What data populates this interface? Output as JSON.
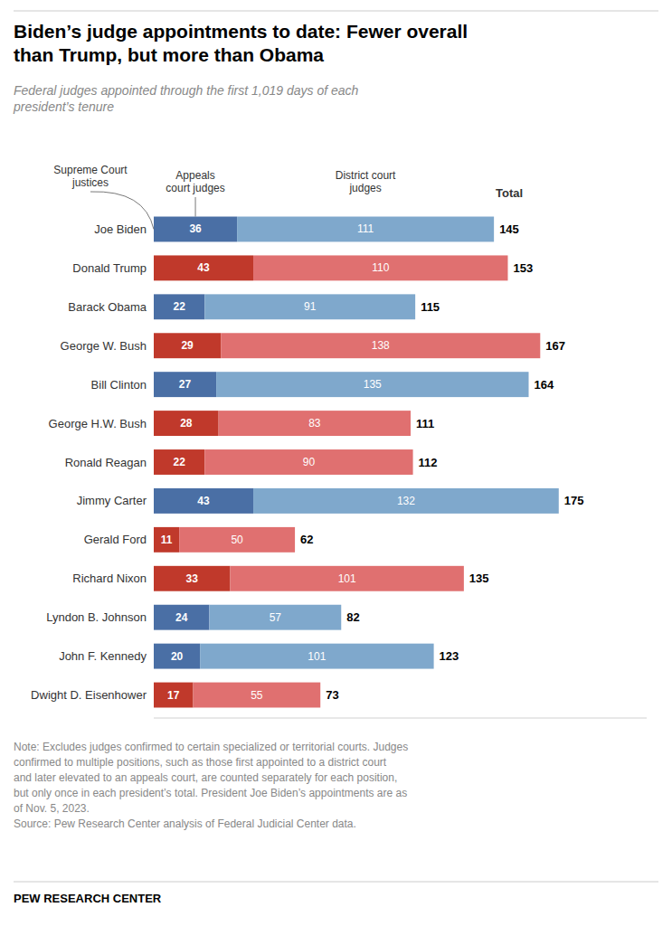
{
  "chart_data": {
    "type": "bar",
    "orientation": "horizontal",
    "stacked": true,
    "data_labels": true,
    "grid": false,
    "tick_labels": "y",
    "title": "Biden’s judge appointments to date: Fewer overall\nthan Trump, but more than Obama",
    "subtitle": "Federal judges appointed through the first 1,019 days of each\npresident’s tenure",
    "categories": [
      "Joe Biden",
      "Donald Trump",
      "Barack Obama",
      "George W. Bush",
      "Bill Clinton",
      "George H.W. Bush",
      "Ronald Reagan",
      "Jimmy Carter",
      "Gerald Ford",
      "Richard Nixon",
      "Lyndon B. Johnson",
      "John F. Kennedy",
      "Dwight D. Eisenhower"
    ],
    "series": [
      {
        "name": "Appeals\ncourt judges",
        "values": [
          36,
          43,
          22,
          29,
          27,
          28,
          22,
          43,
          11,
          33,
          24,
          20,
          17
        ],
        "colors": [
          "#4a6fa5",
          "#c0392b",
          "#4a6fa5",
          "#c0392b",
          "#4a6fa5",
          "#c0392b",
          "#c0392b",
          "#4a6fa5",
          "#c0392b",
          "#c0392b",
          "#4a6fa5",
          "#4a6fa5",
          "#c0392b"
        ]
      },
      {
        "name": "District court\njudges",
        "values": [
          111,
          110,
          91,
          138,
          135,
          83,
          90,
          132,
          50,
          101,
          57,
          101,
          55
        ],
        "colors": [
          "#7fa8cc",
          "#e07070",
          "#7fa8cc",
          "#e07070",
          "#7fa8cc",
          "#e07070",
          "#e07070",
          "#7fa8cc",
          "#e07070",
          "#e07070",
          "#7fa8cc",
          "#7fa8cc",
          "#e07070"
        ]
      }
    ],
    "totals": [
      145,
      153,
      115,
      167,
      164,
      111,
      112,
      175,
      62,
      135,
      82,
      123,
      73
    ],
    "totals_label": "Total",
    "annotations": [
      "Supreme Court\njustices"
    ],
    "xlim": [
      0,
      213
    ],
    "note": "Note: Excludes judges confirmed to certain specialized or territorial courts. Judges\nconfirmed to multiple positions, such as those first appointed to a district court\nand later elevated to an appeals court, are counted separately for each position,\nbut only once in each president’s total. President Joe Biden’s appointments are as\nof Nov. 5, 2023.",
    "source": "Source: Pew Research Center analysis of Federal Judicial Center data.",
    "footer": "PEW RESEARCH CENTER"
  }
}
